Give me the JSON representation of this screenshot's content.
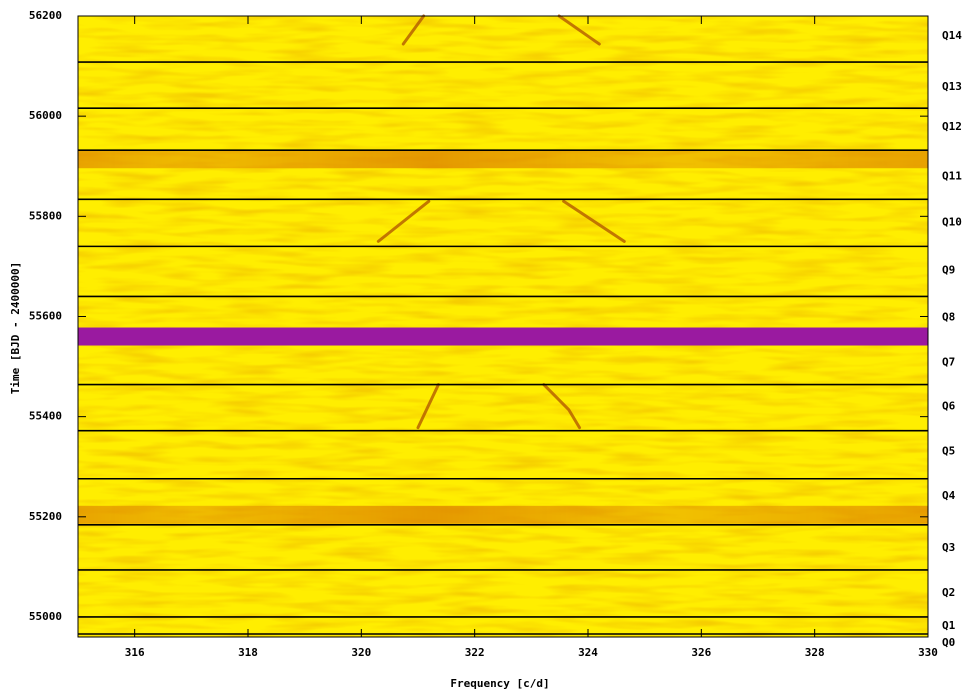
{
  "chart_data": {
    "type": "heatmap",
    "xlabel": "Frequency [c/d]",
    "ylabel": "Time [BJD - 2400000]",
    "xlim": [
      315,
      330
    ],
    "xticks": [
      316,
      318,
      320,
      322,
      324,
      326,
      328,
      330
    ],
    "ylim": [
      54960,
      56200
    ],
    "yticks": [
      55000,
      55200,
      55400,
      55600,
      55800,
      56000,
      56200
    ],
    "boundary_color": "#000000",
    "boundaries": [
      56108,
      56016,
      55932,
      55834,
      55740,
      55640,
      55464,
      55372,
      55276,
      55184,
      55094,
      55000,
      54966
    ],
    "bands": [
      {
        "time": 55914,
        "color": "#e08a00"
      },
      {
        "time": 55204,
        "color": "#e08a00"
      },
      {
        "time": 55560,
        "color": "#9a1aa0"
      }
    ],
    "track_color": "#b35a00",
    "tracks": [
      {
        "x": [
          321.1,
          320.74
        ],
        "y": [
          56200,
          56144
        ]
      },
      {
        "x": [
          323.49,
          324.2
        ],
        "y": [
          56200,
          56144
        ]
      },
      {
        "x": [
          321.19,
          320.3
        ],
        "y": [
          55830,
          55750
        ]
      },
      {
        "x": [
          323.57,
          324.64
        ],
        "y": [
          55830,
          55750
        ]
      },
      {
        "x": [
          321.36,
          321.0
        ],
        "y": [
          55464,
          55378
        ]
      },
      {
        "x": [
          323.22,
          323.66,
          323.85
        ],
        "y": [
          55464,
          55414,
          55378
        ]
      }
    ],
    "quarters": [
      {
        "label": "Q14",
        "time": 56160
      },
      {
        "label": "Q13",
        "time": 56058
      },
      {
        "label": "Q12",
        "time": 55978
      },
      {
        "label": "Q11",
        "time": 55880
      },
      {
        "label": "Q10",
        "time": 55788
      },
      {
        "label": "Q9",
        "time": 55692
      },
      {
        "label": "Q8",
        "time": 55598
      },
      {
        "label": "Q7",
        "time": 55508
      },
      {
        "label": "Q6",
        "time": 55420
      },
      {
        "label": "Q5",
        "time": 55330
      },
      {
        "label": "Q4",
        "time": 55242
      },
      {
        "label": "Q3",
        "time": 55138
      },
      {
        "label": "Q2",
        "time": 55048
      },
      {
        "label": "Q1",
        "time": 54982
      },
      {
        "label": "Q0",
        "time": 54948
      }
    ]
  }
}
